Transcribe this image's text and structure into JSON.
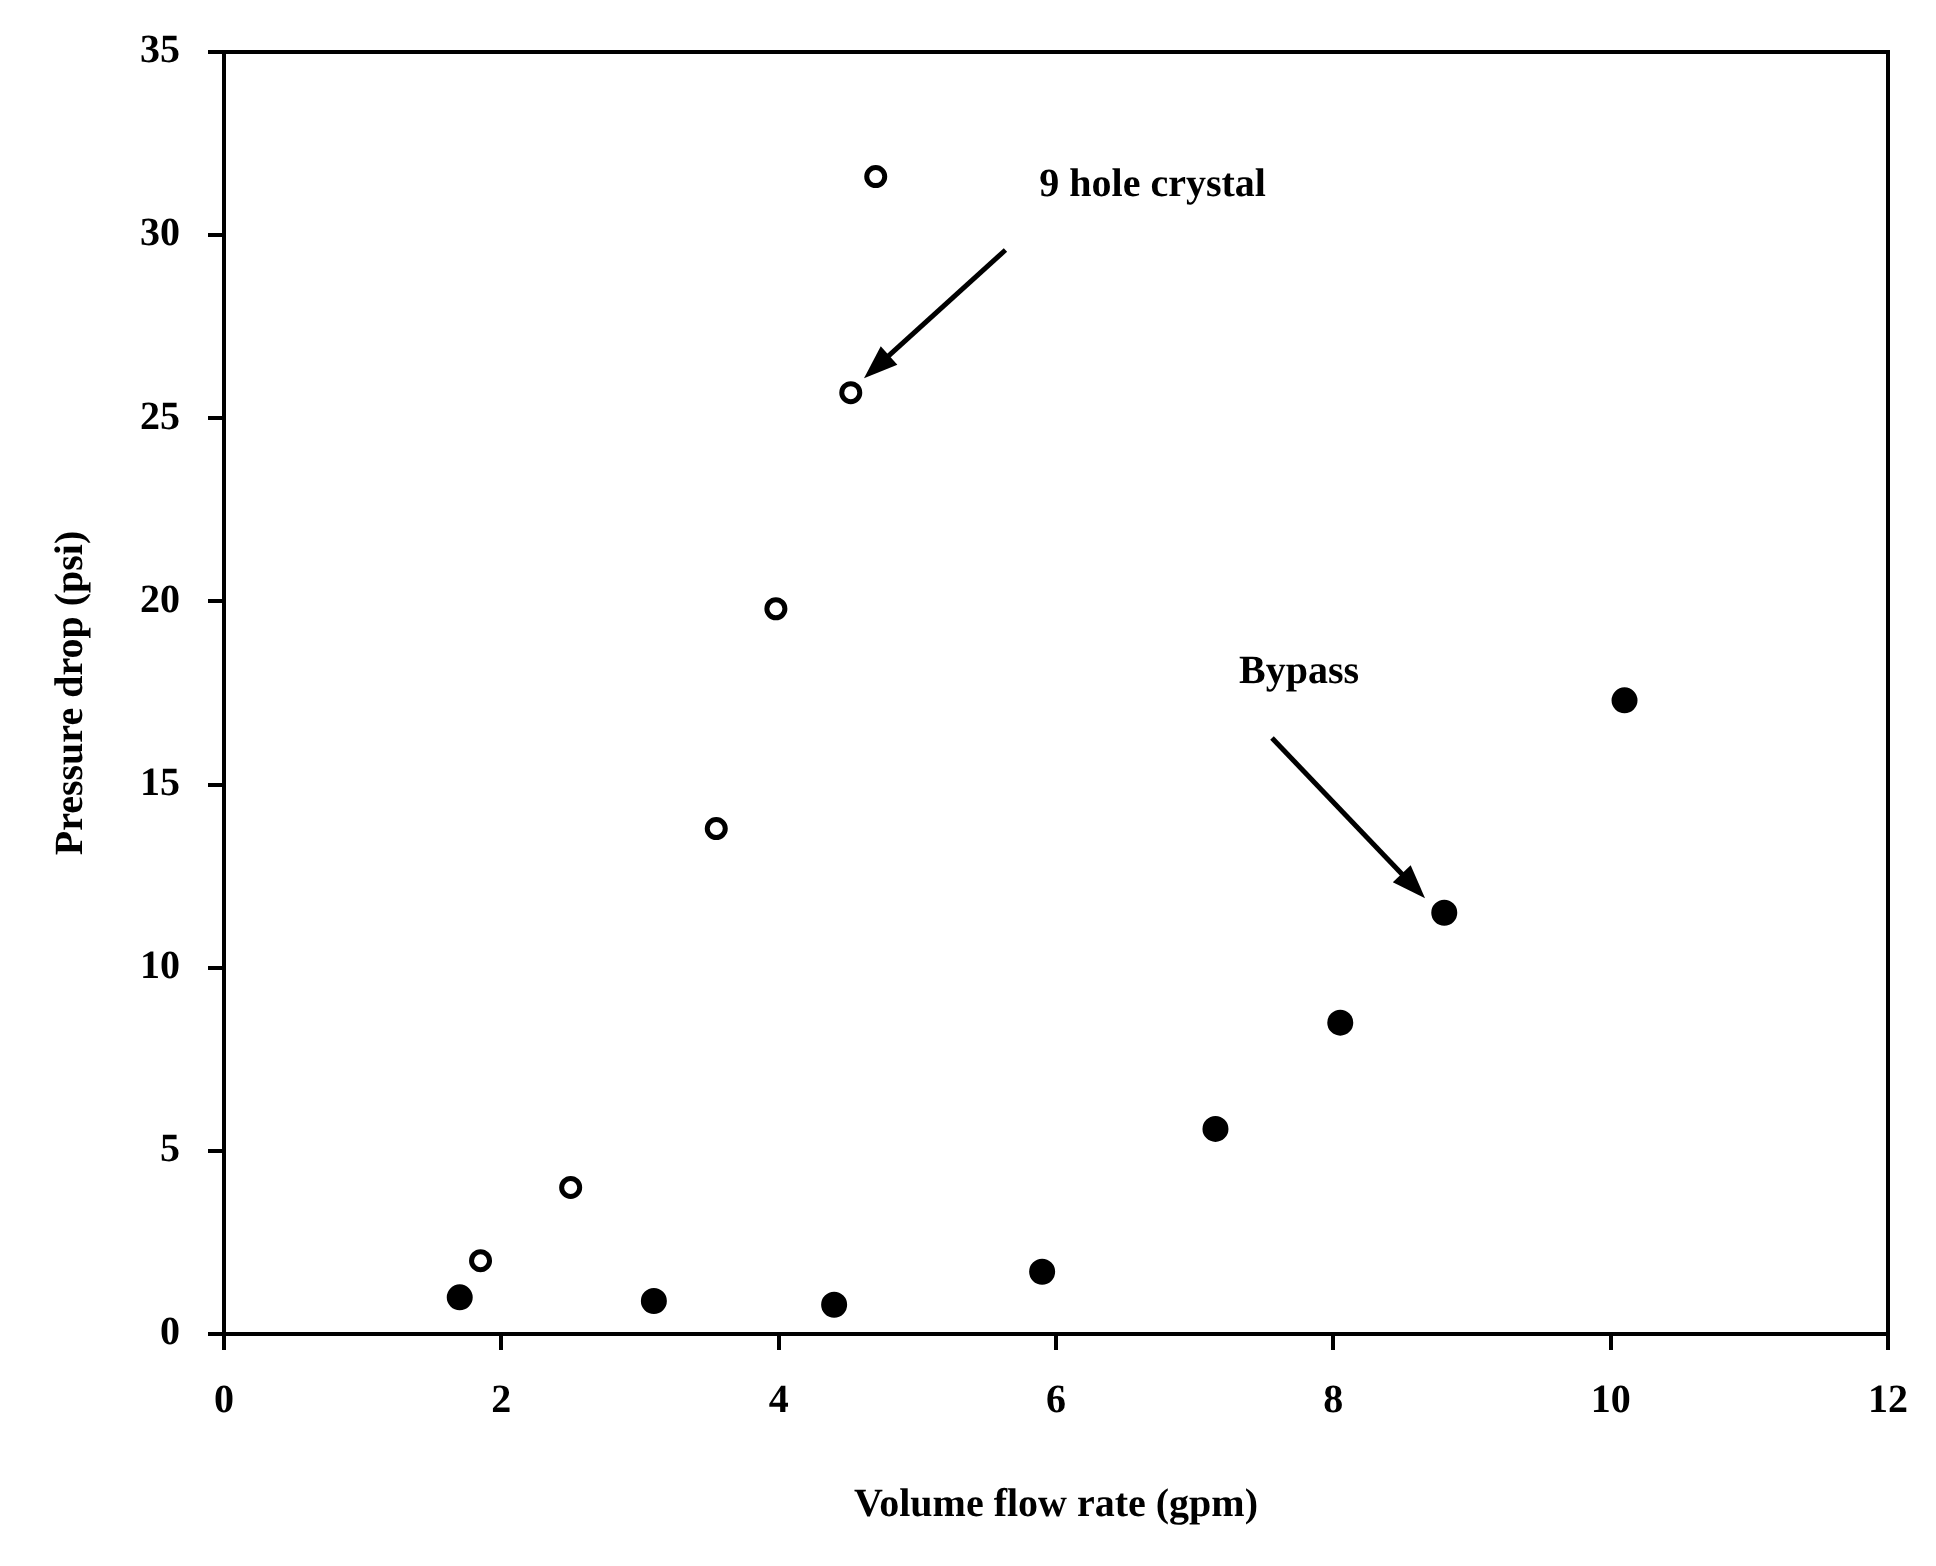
{
  "chart_data": {
    "type": "scatter",
    "xlabel": "Volume flow rate (gpm)",
    "ylabel": "Pressure drop (psi)",
    "series": [
      {
        "color": "#000000",
        "x": [
          1.85,
          2.5,
          3.55,
          3.98,
          4.52,
          4.7
        ],
        "values": [
          2.0,
          4.0,
          13.8,
          19.8,
          25.7,
          31.6
        ]
      },
      {
        "color": "#000000",
        "x": [
          1.7,
          3.1,
          4.4,
          5.9,
          7.15,
          8.05,
          8.8,
          10.1
        ],
        "values": [
          1.0,
          0.9,
          0.8,
          1.7,
          5.6,
          8.5,
          11.5,
          17.3
        ]
      }
    ],
    "xlim": [
      0,
      12
    ],
    "xticks": [
      0,
      2,
      4,
      6,
      8,
      10,
      12
    ],
    "ylim": [
      0,
      35
    ],
    "yticks": [
      0,
      5,
      10,
      15,
      20,
      25,
      30,
      35
    ],
    "grid": false,
    "legend": false,
    "marker": "circle",
    "annotations": [
      "9 hole crystal",
      "Bypass"
    ]
  }
}
